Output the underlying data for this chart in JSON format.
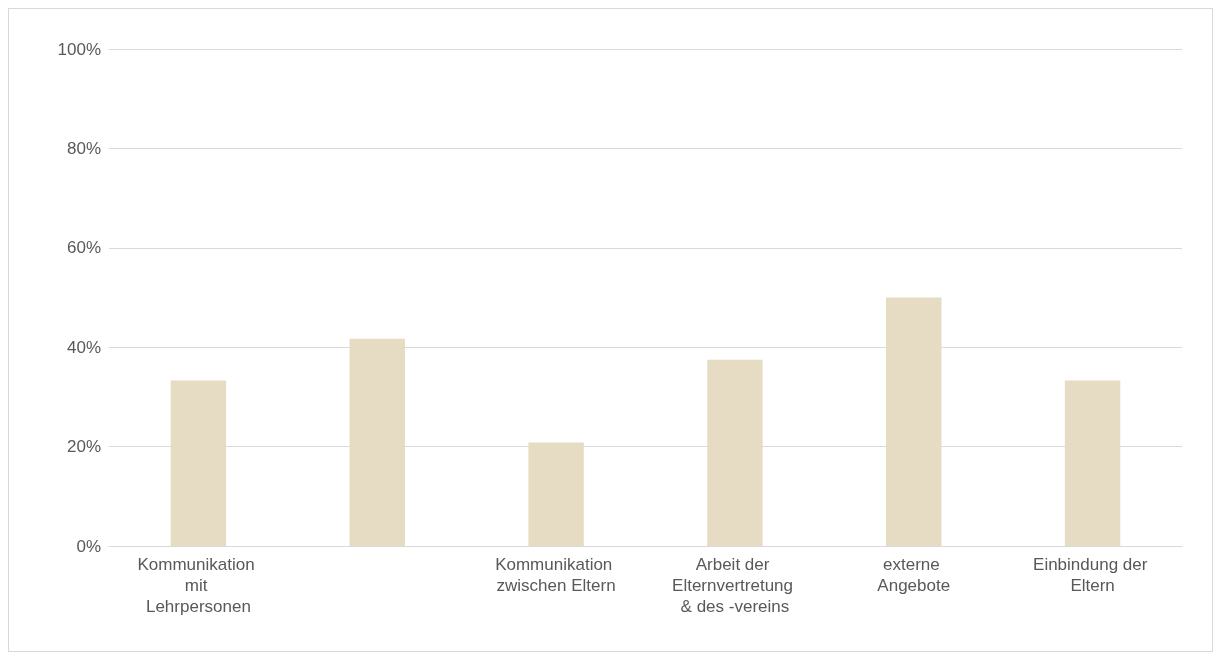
{
  "chart_data": {
    "type": "bar",
    "categories": [
      "Kommunikation mit Lehrpersonen",
      null,
      "Kommunikation zwischen Eltern",
      "Arbeit der Elternvertretung & des -vereins",
      "externe Angebote",
      "Einbindung der Eltern"
    ],
    "values": [
      33.3,
      41.7,
      20.8,
      37.5,
      50,
      33.3
    ],
    "color": "#e6dcc3",
    "ylim": [
      0,
      100
    ],
    "yticks": [
      {
        "value": 0,
        "label": "0%"
      },
      {
        "value": 20,
        "label": "20%"
      },
      {
        "value": 40,
        "label": "40%"
      },
      {
        "value": 60,
        "label": "60%"
      },
      {
        "value": 80,
        "label": "80%"
      },
      {
        "value": 100,
        "label": "100%"
      }
    ],
    "grid": "y"
  }
}
